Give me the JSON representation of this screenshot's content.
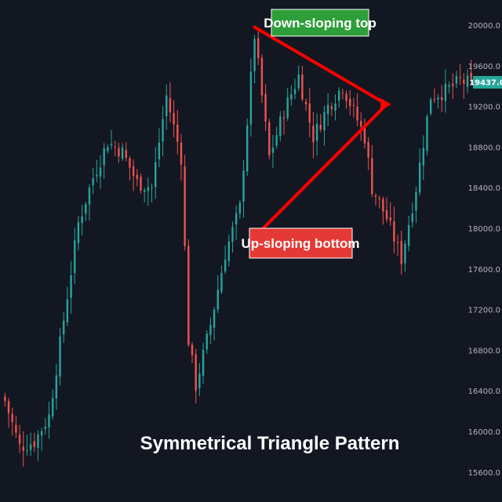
{
  "chart_data": {
    "type": "candlestick",
    "title": "Symmetrical Triangle Pattern",
    "ylim": [
      15450,
      20250
    ],
    "yticks": [
      15600,
      16000,
      16400,
      16800,
      17200,
      17600,
      18000,
      18400,
      18800,
      19200,
      19600,
      20000
    ],
    "ytick_labels": [
      "15600.0",
      "16000.0",
      "16400.0",
      "16800.0",
      "17200.0",
      "17600.0",
      "18000.0",
      "18400.0",
      "18800.0",
      "19200.0",
      "19600.0",
      "20000.0"
    ],
    "last_price": 19437,
    "last_price_label": "19437.0",
    "grid": false,
    "colors": {
      "background": "#131722",
      "up": "#26a69a",
      "down": "#ef5350",
      "annotation": "#ff0000",
      "top_label_bg": "#2e9e3a",
      "bottom_label_bg": "#e53935",
      "badge": "#26a69a"
    },
    "anchors": [
      [
        0,
        16300
      ],
      [
        4,
        15850
      ],
      [
        8,
        15900
      ],
      [
        12,
        16150
      ],
      [
        16,
        17100
      ],
      [
        20,
        18050
      ],
      [
        24,
        18500
      ],
      [
        28,
        18850
      ],
      [
        32,
        18750
      ],
      [
        36,
        18450
      ],
      [
        40,
        18400
      ],
      [
        44,
        19300
      ],
      [
        48,
        18700
      ],
      [
        50,
        16900
      ],
      [
        52,
        16450
      ],
      [
        56,
        17050
      ],
      [
        60,
        17750
      ],
      [
        64,
        18200
      ],
      [
        68,
        19900
      ],
      [
        70,
        19300
      ],
      [
        72,
        18700
      ],
      [
        76,
        19150
      ],
      [
        80,
        19500
      ],
      [
        84,
        18900
      ],
      [
        88,
        19200
      ],
      [
        92,
        19400
      ],
      [
        95,
        19150
      ],
      [
        98,
        18900
      ],
      [
        100,
        18400
      ],
      [
        104,
        18100
      ],
      [
        108,
        17700
      ],
      [
        112,
        18400
      ],
      [
        116,
        19300
      ],
      [
        120,
        19350
      ],
      [
        124,
        19450
      ],
      [
        127,
        19420
      ]
    ],
    "annotations": {
      "top_label": "Down-sloping top",
      "bottom_label": "Up-sloping bottom",
      "top_line": [
        [
          68,
          19980
        ],
        [
          104,
          19220
        ]
      ],
      "bottom_line": [
        [
          69,
          17950
        ],
        [
          104,
          19220
        ]
      ]
    }
  }
}
